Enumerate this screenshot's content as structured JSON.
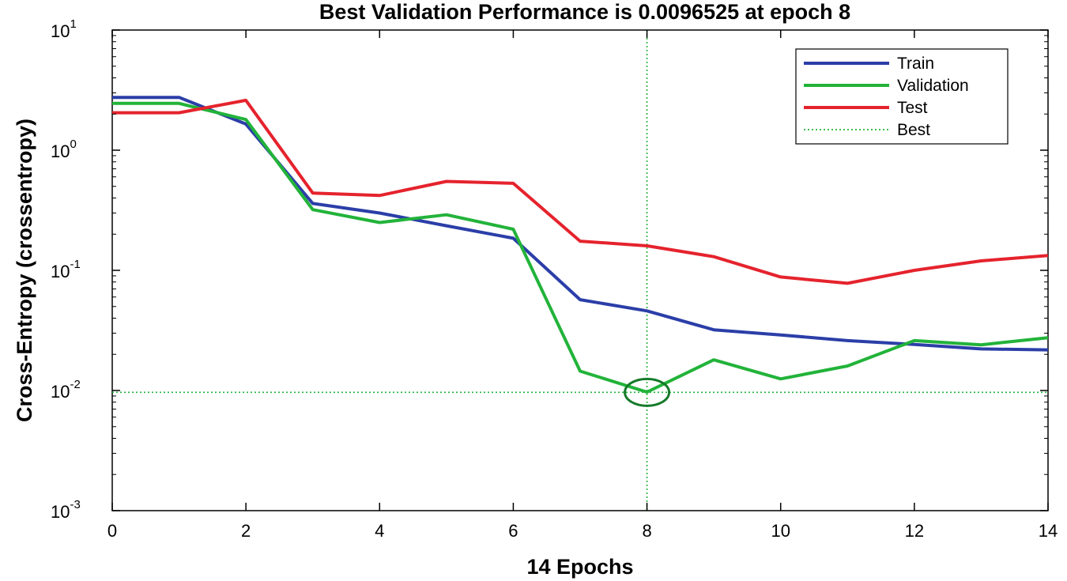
{
  "chart_data": {
    "type": "line",
    "title": "Best Validation Performance is 0.0096525 at epoch 8",
    "xlabel": "14 Epochs",
    "ylabel": "Cross-Entropy  (crossentropy)",
    "xlim": [
      0,
      14
    ],
    "ylim": [
      0.001,
      10
    ],
    "yscale": "log",
    "x_ticks": [
      0,
      2,
      4,
      6,
      8,
      10,
      12,
      14
    ],
    "y_ticks": [
      {
        "base": "10",
        "exp": "1",
        "value": 10
      },
      {
        "base": "10",
        "exp": "0",
        "value": 1
      },
      {
        "base": "10",
        "exp": "-1",
        "value": 0.1
      },
      {
        "base": "10",
        "exp": "-2",
        "value": 0.01
      },
      {
        "base": "10",
        "exp": "-3",
        "value": 0.001
      }
    ],
    "x": [
      0,
      1,
      2,
      3,
      4,
      5,
      6,
      7,
      8,
      9,
      10,
      11,
      12,
      13,
      14
    ],
    "series": [
      {
        "name": "Train",
        "color": "#2b3ea8",
        "style": "solid",
        "values": [
          2.75,
          2.75,
          1.65,
          0.36,
          0.3,
          0.235,
          0.185,
          0.057,
          0.046,
          0.032,
          0.029,
          0.026,
          0.0242,
          0.0222,
          0.0218
        ]
      },
      {
        "name": "Validation",
        "color": "#22b33a",
        "style": "solid",
        "values": [
          2.45,
          2.45,
          1.8,
          0.32,
          0.25,
          0.29,
          0.22,
          0.0145,
          0.0097,
          0.018,
          0.0125,
          0.016,
          0.026,
          0.024,
          0.0275
        ]
      },
      {
        "name": "Test",
        "color": "#e5232d",
        "style": "solid",
        "values": [
          2.05,
          2.05,
          2.6,
          0.44,
          0.42,
          0.55,
          0.53,
          0.175,
          0.16,
          0.13,
          0.088,
          0.078,
          0.1,
          0.12,
          0.133
        ]
      }
    ],
    "best": {
      "name": "Best",
      "epoch": 8,
      "value": 0.0096525,
      "color": "#22b33a",
      "marker_color": "#157a2a",
      "style": "dotted"
    },
    "grid": false,
    "legend_position": "top-right"
  }
}
